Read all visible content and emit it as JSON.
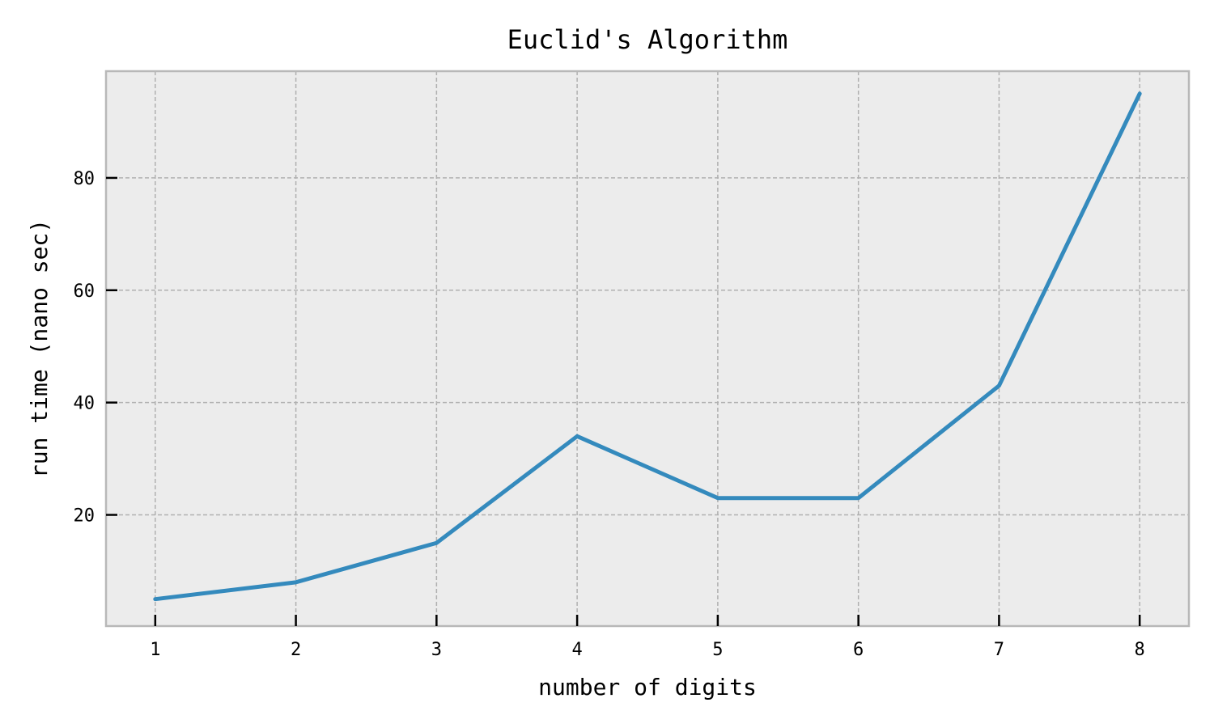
{
  "chart_data": {
    "type": "line",
    "title": "Euclid's Algorithm",
    "xlabel": "number of digits",
    "ylabel": "run time (nano sec)",
    "x": [
      1,
      2,
      3,
      4,
      5,
      6,
      7,
      8
    ],
    "series": [
      {
        "values": [
          5,
          8,
          15,
          34,
          23,
          23,
          43,
          95
        ],
        "color": "#348abd"
      }
    ],
    "xticks": [
      "1",
      "2",
      "3",
      "4",
      "5",
      "6",
      "7",
      "8"
    ],
    "yticks": [
      "20",
      "40",
      "60",
      "80"
    ],
    "ytick_values": [
      20,
      40,
      60,
      80
    ],
    "xlim": [
      0.65,
      8.35
    ],
    "ylim": [
      0.2,
      99.0
    ],
    "grid": true,
    "colors": {
      "plot_background": "#ececec",
      "grid": "#b0b0b0",
      "axes_edge": "#b8b8b8"
    }
  }
}
